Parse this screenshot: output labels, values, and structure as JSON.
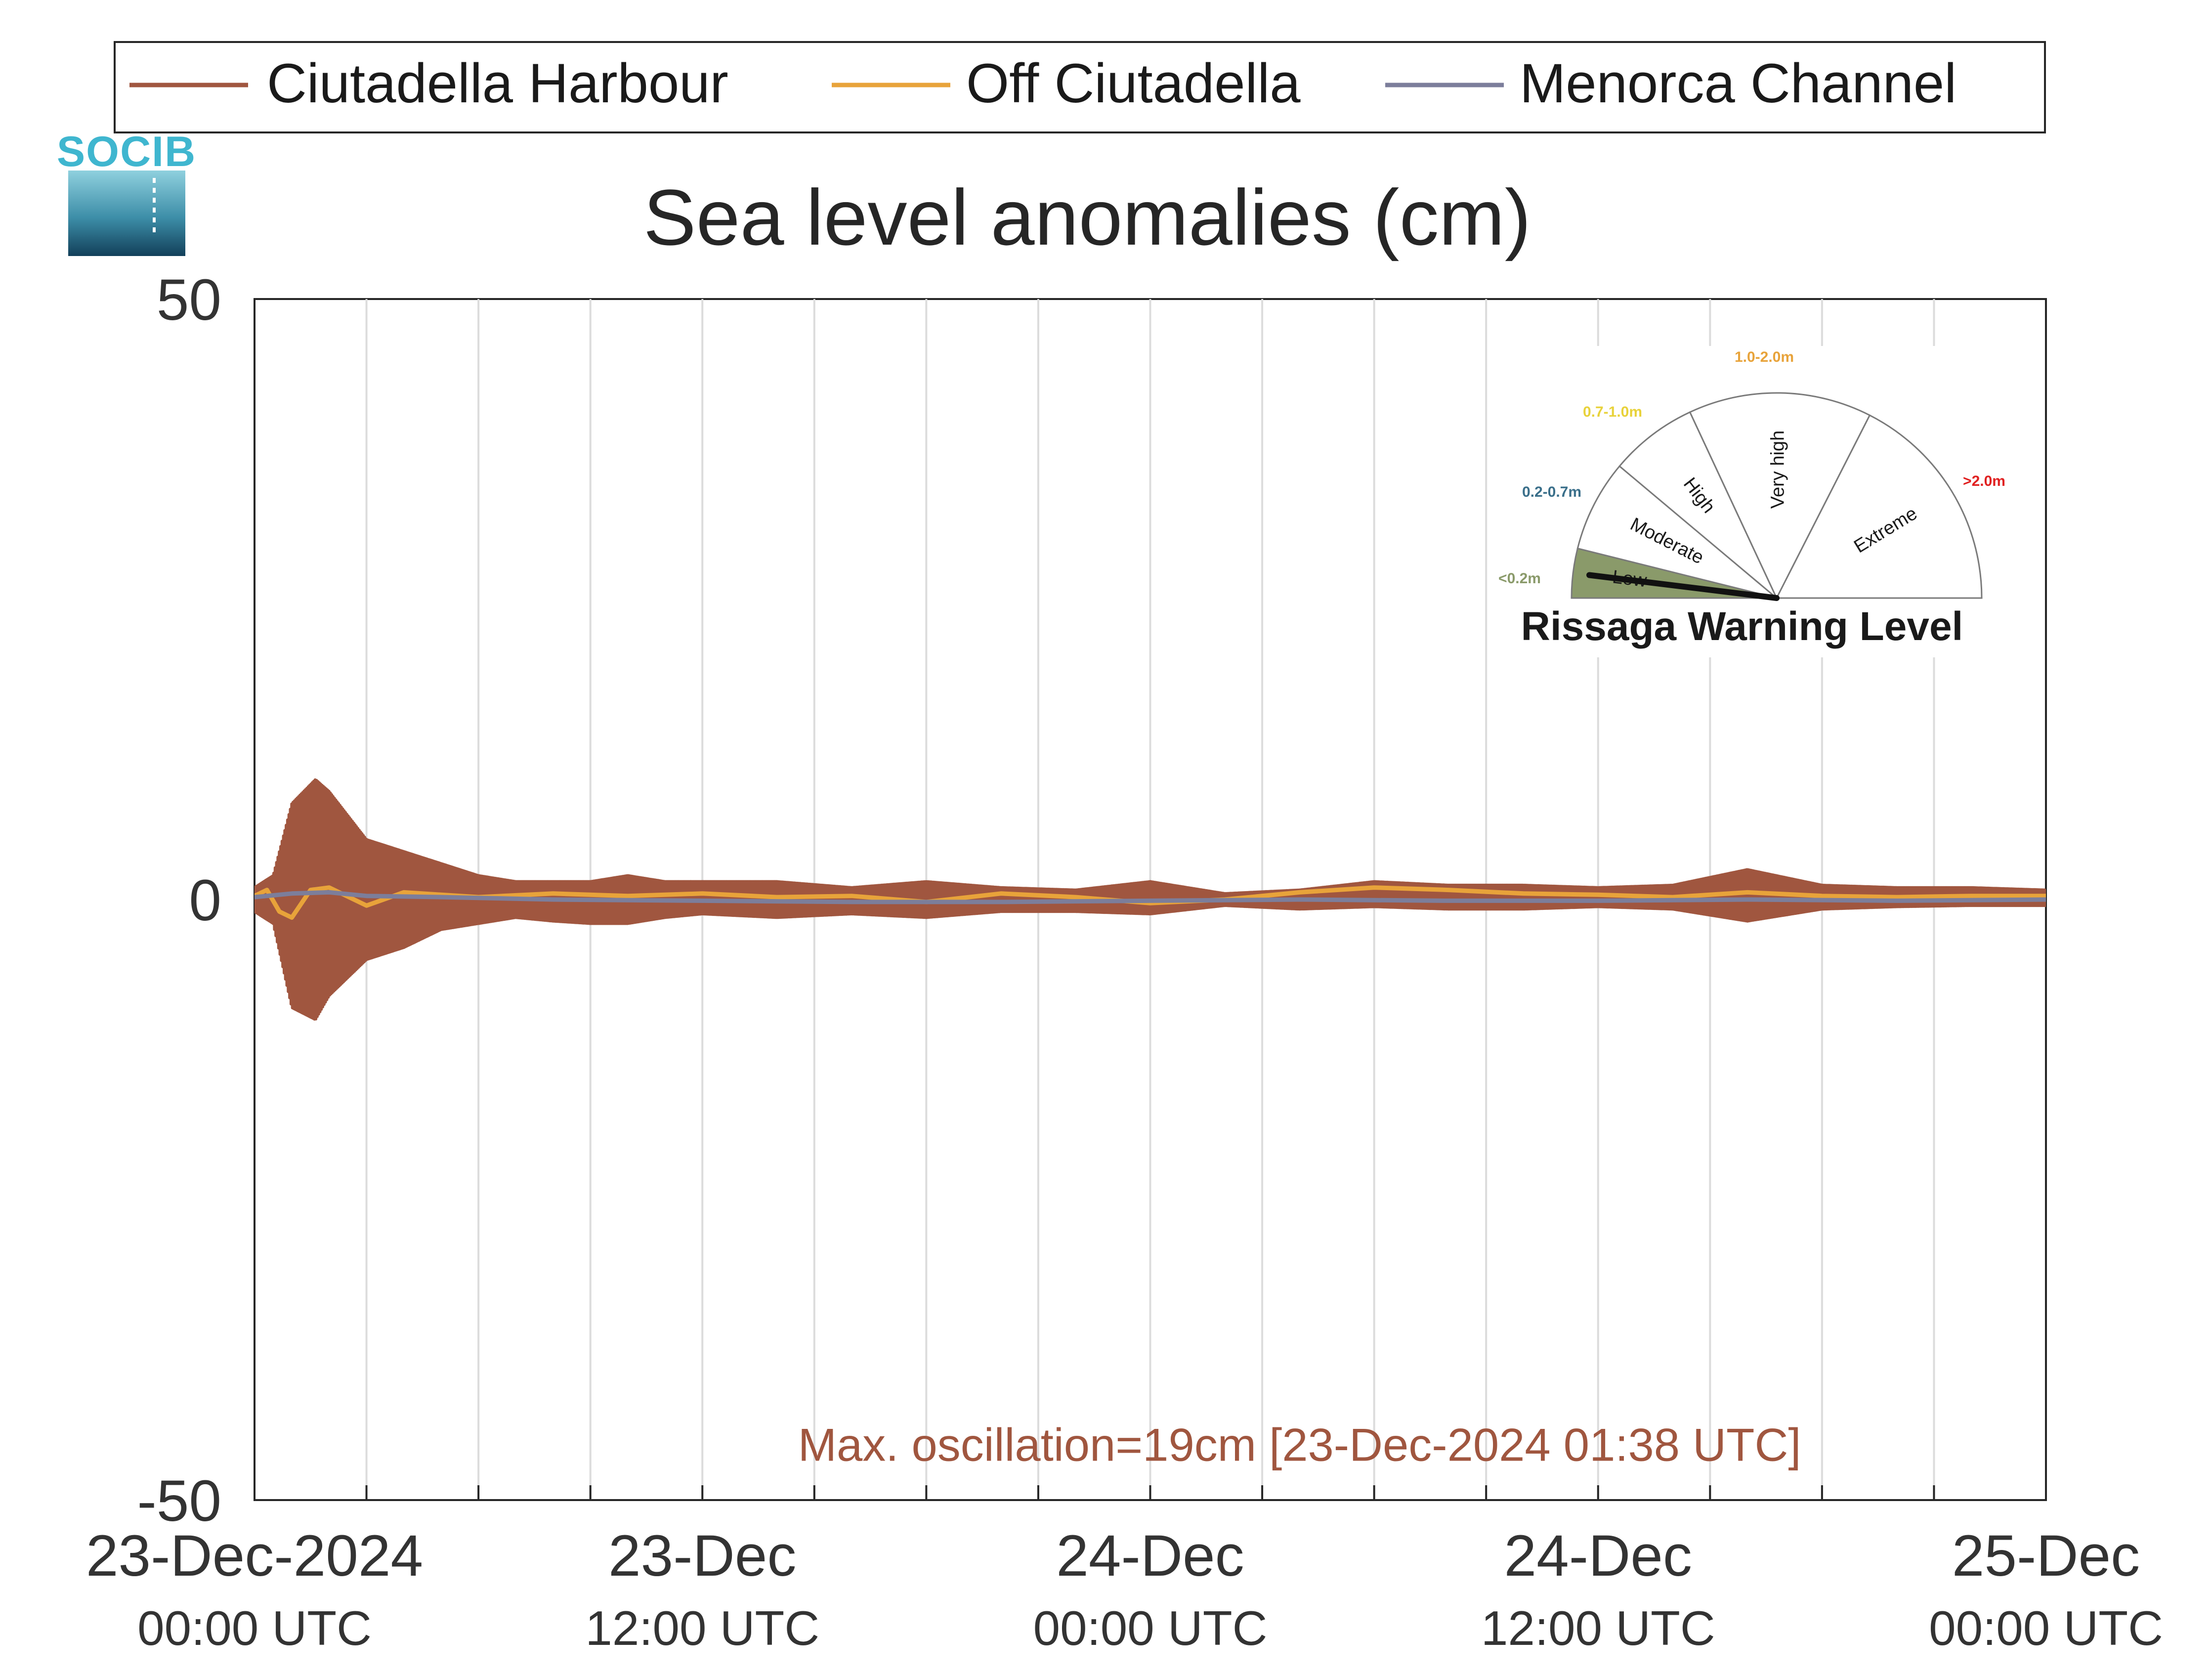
{
  "logo": {
    "text": "SOCIB"
  },
  "chart_data": {
    "type": "line",
    "title": "Sea level anomalies (cm)",
    "ylim": [
      -50,
      50
    ],
    "y_ticks": [
      -50,
      0,
      50
    ],
    "y_tick_labels": [
      "-50",
      "0",
      "50"
    ],
    "xlim": [
      "2024-12-23T00:00",
      "2024-12-25T00:00"
    ],
    "x_ticks": [
      {
        "x": "2024-12-23T00:00",
        "line1": "23-Dec-2024",
        "line2": "00:00 UTC"
      },
      {
        "x": "2024-12-23T12:00",
        "line1": "23-Dec",
        "line2": "12:00 UTC"
      },
      {
        "x": "2024-12-24T00:00",
        "line1": "24-Dec",
        "line2": "00:00 UTC"
      },
      {
        "x": "2024-12-24T12:00",
        "line1": "24-Dec",
        "line2": "12:00 UTC"
      },
      {
        "x": "2024-12-25T00:00",
        "line1": "25-Dec",
        "line2": "00:00 UTC"
      }
    ],
    "grid_x_every_hours": 3,
    "grid": true,
    "legend_position": "top",
    "series": [
      {
        "name": "Ciutadella Harbour",
        "color": "#a0563f",
        "kind": "oscillation-envelope",
        "x": [
          "2024-12-23T00:00",
          "2024-12-23T00:30",
          "2024-12-23T01:00",
          "2024-12-23T01:38",
          "2024-12-23T02:00",
          "2024-12-23T03:00",
          "2024-12-23T04:00",
          "2024-12-23T05:00",
          "2024-12-23T06:00",
          "2024-12-23T07:00",
          "2024-12-23T08:00",
          "2024-12-23T09:00",
          "2024-12-23T10:00",
          "2024-12-23T11:00",
          "2024-12-23T12:00",
          "2024-12-23T14:00",
          "2024-12-23T16:00",
          "2024-12-23T18:00",
          "2024-12-23T20:00",
          "2024-12-23T22:00",
          "2024-12-24T00:00",
          "2024-12-24T02:00",
          "2024-12-24T04:00",
          "2024-12-24T06:00",
          "2024-12-24T08:00",
          "2024-12-24T10:00",
          "2024-12-24T12:00",
          "2024-12-24T14:00",
          "2024-12-24T16:00",
          "2024-12-24T18:00",
          "2024-12-24T20:00",
          "2024-12-24T22:00",
          "2024-12-25T00:00"
        ],
        "upper": [
          1,
          2,
          8,
          10,
          9,
          5,
          4,
          3,
          2,
          1.5,
          1.5,
          1.5,
          2,
          1.5,
          1.5,
          1.5,
          1,
          1.5,
          1,
          0.8,
          1.5,
          0.5,
          0.8,
          1.5,
          1.2,
          1.2,
          1,
          1.2,
          2.5,
          1.2,
          1,
          1,
          0.8
        ],
        "lower": [
          -1,
          -2,
          -9,
          -10,
          -8,
          -5,
          -4,
          -2.5,
          -2,
          -1.5,
          -1.8,
          -2,
          -2,
          -1.5,
          -1.2,
          -1.5,
          -1.2,
          -1.5,
          -1,
          -1,
          -1.2,
          -0.5,
          -0.8,
          -0.6,
          -0.8,
          -0.8,
          -0.6,
          -0.8,
          -1.8,
          -0.8,
          -0.6,
          -0.5,
          -0.5
        ]
      },
      {
        "name": "Off Ciutadella",
        "color": "#e8a33a",
        "x": [
          "2024-12-23T00:00",
          "2024-12-23T00:20",
          "2024-12-23T00:40",
          "2024-12-23T01:00",
          "2024-12-23T01:30",
          "2024-12-23T02:00",
          "2024-12-23T03:00",
          "2024-12-23T04:00",
          "2024-12-23T06:00",
          "2024-12-23T08:00",
          "2024-12-23T10:00",
          "2024-12-23T12:00",
          "2024-12-23T14:00",
          "2024-12-23T16:00",
          "2024-12-23T18:00",
          "2024-12-23T20:00",
          "2024-12-23T22:00",
          "2024-12-24T00:00",
          "2024-12-24T02:00",
          "2024-12-24T04:00",
          "2024-12-24T06:00",
          "2024-12-24T08:00",
          "2024-12-24T10:00",
          "2024-12-24T12:00",
          "2024-12-24T14:00",
          "2024-12-24T16:00",
          "2024-12-24T18:00",
          "2024-12-24T20:00",
          "2024-12-24T22:00",
          "2024-12-25T00:00"
        ],
        "values": [
          0.3,
          0.8,
          -1,
          -1.5,
          0.8,
          1,
          -0.5,
          0.6,
          0.2,
          0.5,
          0.3,
          0.5,
          0.2,
          0.3,
          -0.2,
          0.5,
          0.2,
          -0.3,
          0,
          0.6,
          1,
          0.8,
          0.5,
          0.4,
          0.2,
          0.6,
          0.3,
          0.2,
          0.3,
          0.3
        ]
      },
      {
        "name": "Menorca Channel",
        "color": "#7c7e9b",
        "x": [
          "2024-12-23T00:00",
          "2024-12-23T01:00",
          "2024-12-23T02:00",
          "2024-12-23T03:00",
          "2024-12-23T05:00",
          "2024-12-23T08:00",
          "2024-12-23T12:00",
          "2024-12-23T16:00",
          "2024-12-23T20:00",
          "2024-12-24T00:00",
          "2024-12-24T04:00",
          "2024-12-24T08:00",
          "2024-12-24T12:00",
          "2024-12-24T16:00",
          "2024-12-24T20:00",
          "2024-12-25T00:00"
        ],
        "values": [
          0.2,
          0.5,
          0.6,
          0.3,
          0.2,
          0,
          -0.1,
          -0.2,
          -0.2,
          -0.1,
          0,
          -0.1,
          -0.1,
          0,
          -0.1,
          0
        ]
      }
    ],
    "annotation": {
      "text": "Max. oscillation=19cm [23-Dec-2024 01:38 UTC]",
      "color": "#a0563f",
      "x": "2024-12-24T04:00",
      "y": -45.5
    }
  },
  "gauge": {
    "title": "Rissaga Warning Level",
    "current_level": "Low",
    "sectors": [
      {
        "label": "Low",
        "range": "<0.2m",
        "color": "#8a9a6a",
        "range_color": "#8a9a6a"
      },
      {
        "label": "Moderate",
        "range": "0.2-0.7m",
        "color": "#ffffff",
        "range_color": "#3a6f8a"
      },
      {
        "label": "High",
        "range": "0.7-1.0m",
        "color": "#ffffff",
        "range_color": "#e8d23a"
      },
      {
        "label": "Very high",
        "range": "1.0-2.0m",
        "color": "#ffffff",
        "range_color": "#e8a33a"
      },
      {
        "label": "Extreme",
        "range": ">2.0m",
        "color": "#ffffff",
        "range_color": "#e02020"
      }
    ]
  }
}
